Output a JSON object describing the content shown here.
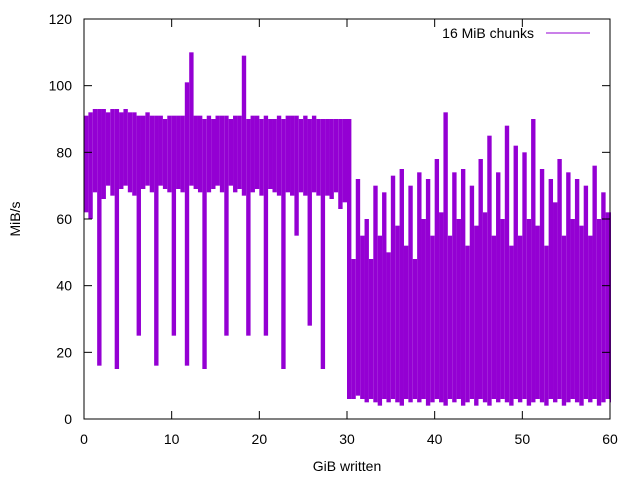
{
  "chart_data": {
    "type": "line",
    "title": "",
    "xlabel": "GiB written",
    "ylabel": "MiB/s",
    "xlim": [
      0,
      60
    ],
    "ylim": [
      0,
      120
    ],
    "x_ticks": [
      "0",
      "10",
      "20",
      "30",
      "40",
      "50",
      "60"
    ],
    "y_ticks": [
      "0",
      "20",
      "40",
      "60",
      "80",
      "100",
      "120"
    ],
    "grid": false,
    "legend_position": "top-right",
    "series": [
      {
        "name": "16 MiB chunks",
        "color": "#9400d3",
        "x": [
          0,
          0.5,
          1,
          1.5,
          2,
          2.5,
          3,
          3.5,
          4,
          4.5,
          5,
          5.5,
          6,
          6.5,
          7,
          7.5,
          8,
          8.5,
          9,
          9.5,
          10,
          10.5,
          11,
          11.5,
          12,
          12.5,
          13,
          13.5,
          14,
          14.5,
          15,
          15.5,
          16,
          16.5,
          17,
          17.5,
          18,
          18.5,
          19,
          19.5,
          20,
          20.5,
          21,
          21.5,
          22,
          22.5,
          23,
          23.5,
          24,
          24.5,
          25,
          25.5,
          26,
          26.5,
          27,
          27.5,
          28,
          28.5,
          29,
          29.5,
          30,
          30.5,
          31,
          31.5,
          32,
          32.5,
          33,
          33.5,
          34,
          34.5,
          35,
          35.5,
          36,
          36.5,
          37,
          37.5,
          38,
          38.5,
          39,
          39.5,
          40,
          40.5,
          41,
          41.5,
          42,
          42.5,
          43,
          43.5,
          44,
          44.5,
          45,
          45.5,
          46,
          46.5,
          47,
          47.5,
          48,
          48.5,
          49,
          49.5,
          50,
          50.5,
          51,
          51.5,
          52,
          52.5,
          53,
          53.5,
          54,
          54.5,
          55,
          55.5,
          56,
          56.5,
          57,
          57.5,
          58,
          58.5,
          59,
          59.5,
          60
        ],
        "y_min": [
          62,
          60,
          68,
          16,
          66,
          70,
          67,
          15,
          69,
          70,
          68,
          67,
          25,
          69,
          70,
          68,
          16,
          70,
          69,
          68,
          25,
          69,
          68,
          16,
          70,
          69,
          68,
          15,
          68,
          69,
          70,
          68,
          25,
          70,
          68,
          69,
          67,
          25,
          68,
          69,
          67,
          25,
          69,
          68,
          67,
          15,
          68,
          67,
          55,
          68,
          67,
          28,
          68,
          67,
          15,
          67,
          66,
          68,
          63,
          65,
          6,
          6,
          7,
          6,
          5,
          6,
          5,
          4,
          6,
          5,
          6,
          5,
          4,
          6,
          5,
          6,
          5,
          6,
          4,
          5,
          6,
          5,
          4,
          6,
          5,
          6,
          4,
          5,
          6,
          4,
          6,
          5,
          4,
          6,
          5,
          6,
          5,
          4,
          6,
          5,
          6,
          4,
          5,
          6,
          5,
          4,
          6,
          5,
          6,
          4,
          5,
          6,
          5,
          4,
          6,
          5,
          6,
          4,
          5,
          6,
          5
        ],
        "y_max": [
          91,
          92,
          93,
          93,
          93,
          92,
          93,
          93,
          92,
          93,
          92,
          92,
          91,
          91,
          92,
          91,
          91,
          91,
          90,
          91,
          91,
          91,
          91,
          101,
          110,
          91,
          91,
          90,
          91,
          90,
          91,
          91,
          91,
          90,
          91,
          91,
          109,
          90,
          91,
          91,
          90,
          91,
          90,
          90,
          91,
          90,
          91,
          91,
          91,
          90,
          91,
          90,
          91,
          90,
          90,
          90,
          90,
          90,
          90,
          90,
          90,
          48,
          72,
          55,
          60,
          48,
          70,
          55,
          68,
          50,
          73,
          58,
          75,
          52,
          70,
          48,
          74,
          60,
          72,
          55,
          78,
          62,
          92,
          55,
          74,
          60,
          75,
          52,
          70,
          58,
          78,
          62,
          85,
          55,
          74,
          60,
          88,
          52,
          82,
          55,
          80,
          60,
          90,
          58,
          75,
          52,
          72,
          65,
          78,
          55,
          74,
          60,
          72,
          58,
          70,
          55,
          76,
          60,
          68,
          62,
          62
        ]
      }
    ]
  }
}
